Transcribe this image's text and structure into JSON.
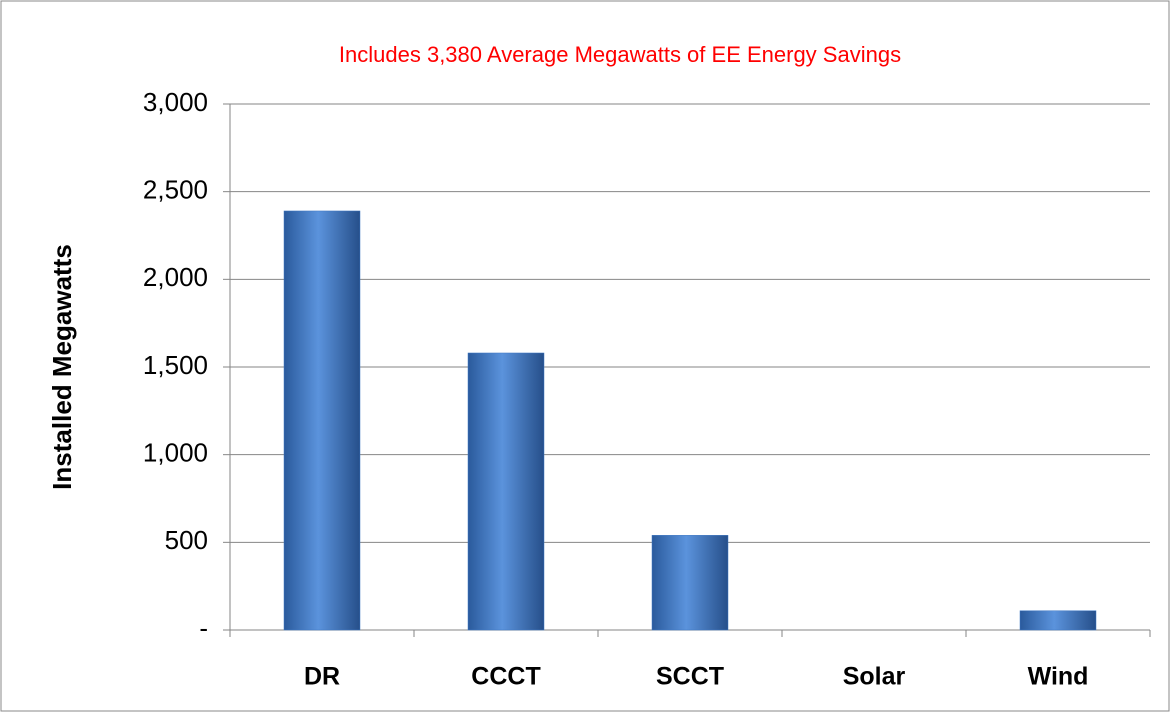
{
  "chart_data": {
    "type": "bar",
    "title": "Includes 3,380 Average Megawatts of EE Energy Savings",
    "y_label": "Installed Megawatts",
    "categories": [
      "DR",
      "CCCT",
      "SCCT",
      "Solar",
      "Wind"
    ],
    "values": [
      2390,
      1580,
      540,
      0,
      110
    ],
    "color": "#3f78c4",
    "title_color": "#ff0000",
    "ylim": [
      0,
      3000
    ],
    "yticks": [
      {
        "value": 0,
        "label": "-"
      },
      500,
      {
        "value": 1000,
        "label": "1,000"
      },
      {
        "value": 1500,
        "label": "1,500"
      },
      {
        "value": 2000,
        "label": "2,000"
      },
      {
        "value": 2500,
        "label": "2,500"
      },
      {
        "value": 3000,
        "label": "3,000"
      }
    ],
    "grid": true
  }
}
